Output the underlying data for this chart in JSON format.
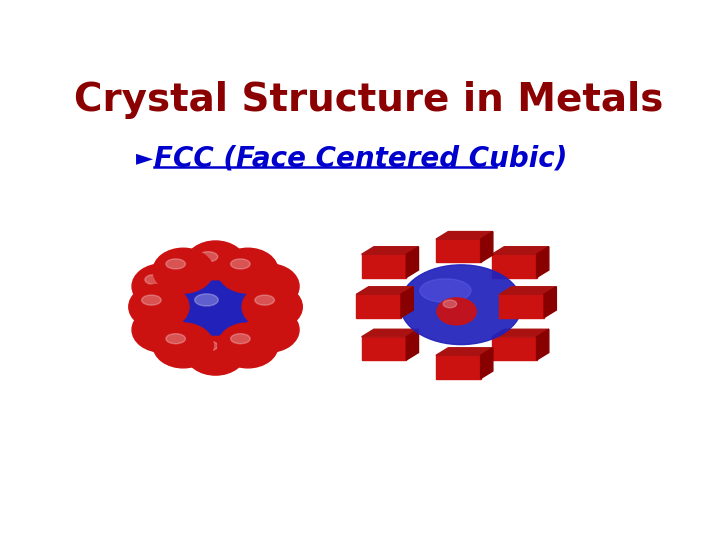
{
  "title": "Crystal Structure in Metals",
  "title_color": "#8B0000",
  "title_fontsize": 28,
  "title_weight": "bold",
  "bullet_text": "FCC (Face Centered Cubic)",
  "bullet_color": "#0000CD",
  "bullet_fontsize": 20,
  "background_color": "#FFFFFF",
  "red_color": "#CC1111",
  "blue_color": "#2222BB",
  "red_dark": "#880000",
  "red_top": "#AA1111",
  "blue_highlight": "#6666EE"
}
